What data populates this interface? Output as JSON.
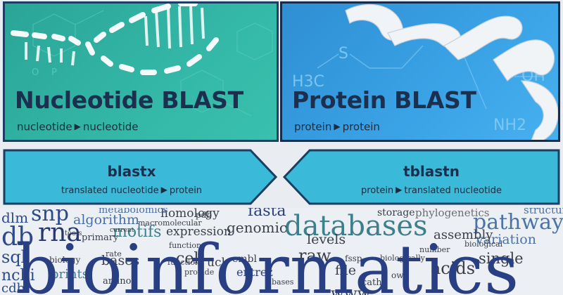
{
  "tiles": {
    "nucleotide": {
      "title": "Nucleotide BLAST",
      "query": "nucleotide",
      "database": "nucleotide"
    },
    "protein": {
      "title": "Protein BLAST",
      "query": "protein",
      "database": "protein"
    }
  },
  "translated": {
    "blastx": {
      "title": "blastx",
      "query": "translated nucleotide",
      "database": "protein"
    },
    "tblastn": {
      "title": "tblastn",
      "query": "protein",
      "database": "translated nucleotide"
    }
  },
  "arrow_glyph": "▶",
  "colors": {
    "nucleotide_tile": "#33b6a6",
    "protein_tile": "#3aa3e6",
    "arrow_fill": "#3ab9d9",
    "border": "#1b3e63",
    "title_text": "#1b2f4e"
  },
  "molecule_labels": {
    "h3c": "H3C",
    "s": "S",
    "oh": "OH",
    "nh2": "NH2",
    "o": "O",
    "p": "P"
  },
  "word_cloud": [
    {
      "text": "bioinformatics",
      "color": "#283f83"
    },
    {
      "text": "databases",
      "color": "#3e7f8c"
    },
    {
      "text": "snp",
      "color": "#2d4a8a"
    },
    {
      "text": "rna",
      "color": "#25386e"
    },
    {
      "text": "homology",
      "color": "#3b3f4a"
    },
    {
      "text": "fasta",
      "color": "#2c3f7a"
    },
    {
      "text": "pathway",
      "color": "#4a74a8"
    },
    {
      "text": "algorithm",
      "color": "#4870a6"
    },
    {
      "text": "metabolomics",
      "color": "#4870a6"
    },
    {
      "text": "expression",
      "color": "#3b3f4a"
    },
    {
      "text": "genomic",
      "color": "#3b3f4a"
    },
    {
      "text": "motifs",
      "color": "#3e7f8c"
    },
    {
      "text": "variation",
      "color": "#4a74a8"
    },
    {
      "text": "storage",
      "color": "#3b3f4a"
    },
    {
      "text": "phylogenetics",
      "color": "#6a6d74"
    },
    {
      "text": "sql",
      "color": "#2d4a8a"
    },
    {
      "text": "dlm",
      "color": "#2d4a8a"
    },
    {
      "text": "db",
      "color": "#2d4a8a"
    },
    {
      "text": "ncbi",
      "color": "#2d4a8a"
    },
    {
      "text": "cdb",
      "color": "#2d4a8a"
    },
    {
      "text": "biology",
      "color": "#3b3f4a"
    },
    {
      "text": "prints",
      "color": "#3e7f8c"
    },
    {
      "text": "bases",
      "color": "#3b3f4a"
    },
    {
      "text": "cell",
      "color": "#3b3f4a"
    },
    {
      "text": "entrez",
      "color": "#2c3f7a"
    },
    {
      "text": "raw",
      "color": "#3b3f4a"
    },
    {
      "text": "file",
      "color": "#3b3f4a"
    },
    {
      "text": "acids",
      "color": "#3b3f4a"
    },
    {
      "text": "single",
      "color": "#3b3f4a"
    },
    {
      "text": "levels",
      "color": "#3b3f4a"
    },
    {
      "text": "assembly",
      "color": "#3b3f4a"
    },
    {
      "text": "biological",
      "color": "#3b3f4a"
    },
    {
      "text": "structural",
      "color": "#4870a6"
    },
    {
      "text": "primary",
      "color": "#3b3f4a"
    },
    {
      "text": "functions",
      "color": "#3b3f4a"
    },
    {
      "text": "macromolecular",
      "color": "#3b3f4a"
    },
    {
      "text": "embl",
      "color": "#3b3f4a"
    },
    {
      "text": "ucl",
      "color": "#3b3f4a"
    },
    {
      "text": "cath",
      "color": "#3b3f4a"
    },
    {
      "text": "owl",
      "color": "#3b3f4a"
    },
    {
      "text": "fssp",
      "color": "#3b3f4a"
    },
    {
      "text": "www",
      "color": "#3b3f4a"
    },
    {
      "text": "amino",
      "color": "#3b3f4a"
    },
    {
      "text": "rate",
      "color": "#3b3f4a"
    },
    {
      "text": "number",
      "color": "#3b3f4a"
    },
    {
      "text": "pdb",
      "color": "#3b3f4a"
    },
    {
      "text": "provide",
      "color": "#3b3f4a"
    },
    {
      "text": "biologically",
      "color": "#3b3f4a"
    },
    {
      "text": "function",
      "color": "#3b3f4a"
    },
    {
      "text": "tools",
      "color": "#3b3f4a"
    },
    {
      "text": "current",
      "color": "#3b3f4a"
    },
    {
      "text": "bases",
      "color": "#3b3f4a"
    }
  ]
}
